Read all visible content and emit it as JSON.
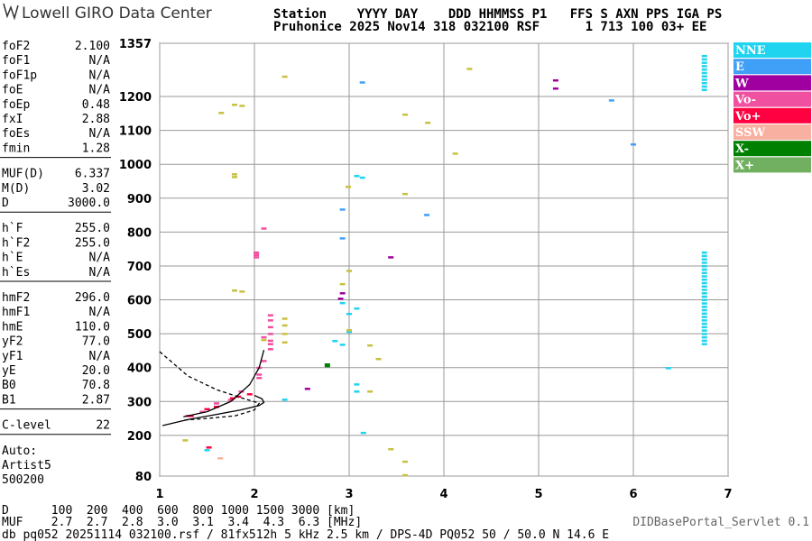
{
  "header": {
    "logo": "Lowell GIRO Data Center",
    "line1": "Station    YYYY DAY    DDD HHMMSS P1   FFS S AXN PPS IGA PS",
    "line2": "Pruhonice 2025 Nov14 318 032100 RSF      1 713 100 03+ EE"
  },
  "parameters": [
    [
      [
        "foF2",
        "2.100"
      ],
      [
        "foF1",
        "N/A"
      ],
      [
        "foF1p",
        "N/A"
      ],
      [
        "foE",
        "N/A"
      ],
      [
        "foEp",
        "0.48"
      ],
      [
        "fxI",
        "2.88"
      ],
      [
        "foEs",
        "N/A"
      ],
      [
        "fmin",
        "1.28"
      ]
    ],
    [
      [
        "MUF(D)",
        "6.337"
      ],
      [
        "M(D)",
        "3.02"
      ],
      [
        "D",
        "3000.0"
      ]
    ],
    [
      [
        "h`F",
        "255.0"
      ],
      [
        "h`F2",
        "255.0"
      ],
      [
        "h`E",
        "N/A"
      ],
      [
        "h`Es",
        "N/A"
      ]
    ],
    [
      [
        "hmF2",
        "296.0"
      ],
      [
        "hmF1",
        "N/A"
      ],
      [
        "hmE",
        "110.0"
      ],
      [
        "yF2",
        "77.0"
      ],
      [
        "yF1",
        "N/A"
      ],
      [
        "yE",
        "20.0"
      ],
      [
        "B0",
        "70.8"
      ],
      [
        "B1",
        "2.87"
      ]
    ],
    [
      [
        "C-level",
        "22"
      ]
    ]
  ],
  "autoscaling": [
    "Auto:",
    "Artist5",
    "500200"
  ],
  "footer": {
    "d_row": "D      100  200  400  600  800 1000 1500 3000 [km]",
    "muf_row": "MUF    2.7  2.7  2.8  3.0  3.1  3.4  4.3  6.3 [MHz]",
    "info": "db pq052 20251114 032100.rsf / 81fx512h 5 kHz 2.5 km / DPS-4D PQ052 50 / 50.0 N 14.6 E",
    "servlet": "DIDBasePortal_Servlet 0.1"
  },
  "chart_data": {
    "type": "scatter",
    "xlim": [
      1,
      7
    ],
    "xticks": [
      1,
      2,
      3,
      4,
      5,
      6,
      7
    ],
    "ylim": [
      80,
      1357
    ],
    "yticks": [
      80,
      200,
      300,
      400,
      500,
      600,
      700,
      800,
      900,
      1000,
      1100,
      1200,
      1357
    ],
    "grid": true,
    "series": [
      {
        "name": "NNE",
        "color": "#20d4f0",
        "x": [
          6.75,
          6.75,
          6.75,
          6.75,
          6.75,
          6.75,
          6.75,
          6.75,
          6.75,
          6.75,
          6.75,
          6.75,
          6.75,
          6.75,
          6.75,
          6.75,
          6.75,
          6.75,
          6.75,
          6.75,
          6.75,
          6.75,
          6.75,
          6.75,
          6.75,
          6.75,
          6.75,
          6.75,
          6.75,
          6.75,
          6.75,
          6.75,
          6.75,
          6.75,
          6.75,
          6.75,
          6.75,
          6.75,
          6.75,
          3.0,
          3.08,
          2.93,
          3.14,
          3.08,
          2.93,
          3.08,
          3.08,
          3.15,
          6.37,
          2.32,
          1.5,
          2.85,
          3.0
        ],
        "values": [
          470,
          480,
          490,
          500,
          510,
          520,
          530,
          540,
          550,
          560,
          570,
          580,
          590,
          600,
          610,
          620,
          630,
          640,
          650,
          660,
          670,
          680,
          690,
          700,
          710,
          720,
          730,
          740,
          1220,
          1230,
          1240,
          1250,
          1260,
          1270,
          1280,
          1290,
          1300,
          1310,
          1320,
          559,
          575,
          591,
          961,
          966,
          468,
          351,
          330,
          208,
          399,
          306,
          157,
          479,
          506
        ]
      },
      {
        "name": "E",
        "color": "#40a0f8",
        "x": [
          3.14,
          5.77,
          6.0,
          3.82,
          2.93,
          2.93
        ],
        "values": [
          1242,
          1189,
          1059,
          851,
          782,
          867
        ]
      },
      {
        "name": "W",
        "color": "#a000a0",
        "x": [
          5.18,
          5.18,
          3.44,
          2.91,
          2.93,
          2.56
        ],
        "values": [
          1248,
          1224,
          726,
          604,
          620,
          338
        ]
      },
      {
        "name": "Vo-",
        "color": "#f050a0",
        "x": [
          2.17,
          2.17,
          2.17,
          2.17,
          2.17,
          2.17,
          2.17,
          2.1,
          2.1,
          2.05,
          2.05,
          2.05,
          1.86,
          1.75,
          1.6,
          1.45,
          1.3,
          2.02,
          2.02,
          2.02,
          2.1
        ],
        "values": [
          555,
          540,
          520,
          500,
          480,
          470,
          455,
          490,
          420,
          400,
          380,
          370,
          330,
          305,
          295,
          270,
          258,
          740,
          733,
          726,
          811
        ]
      },
      {
        "name": "Vo+",
        "color": "#ff0040",
        "x": [
          1.6,
          1.5,
          1.33,
          1.77,
          1.95,
          1.83,
          1.52
        ],
        "values": [
          285,
          278,
          258,
          310,
          322,
          315,
          165
        ]
      },
      {
        "name": "SSW",
        "color": "#f8b0a0",
        "x": [
          1.64
        ],
        "values": [
          133
        ]
      },
      {
        "name": "X-",
        "color": "#008000",
        "x": [
          2.77,
          2.77
        ],
        "values": [
          405,
          410
        ]
      },
      {
        "name": "X+",
        "color": "#70b060",
        "x": [],
        "values": []
      },
      {
        "color": "#c8c040",
        "x": [
          2.32,
          4.27,
          1.65,
          1.79,
          1.87,
          3.59,
          3.83,
          4.12,
          1.79,
          1.79,
          2.99,
          3.59,
          1.79,
          1.87,
          2.93,
          3.0,
          3.0,
          3.22,
          3.31,
          3.22,
          2.1,
          2.32,
          2.32,
          2.32,
          2.32,
          1.27,
          3.44,
          3.59,
          3.59
        ],
        "values": [
          1259,
          1282,
          1152,
          1176,
          1173,
          1147,
          1123,
          1032,
          971,
          963,
          934,
          913,
          628,
          625,
          647,
          686,
          511,
          466,
          426,
          330,
          482,
          545,
          525,
          500,
          475,
          186,
          160,
          123,
          83
        ]
      },
      {
        "color": "#000000",
        "line": true,
        "dashed": false,
        "x": [
          1.03,
          1.3,
          1.6,
          1.85,
          2.05,
          2.1,
          2.08,
          2.0
        ],
        "values": [
          229,
          247,
          262,
          275,
          288,
          297,
          308,
          318
        ]
      },
      {
        "color": "#000000",
        "line": true,
        "dashed": false,
        "x": [
          1.25,
          1.5,
          1.75,
          1.95,
          2.05,
          2.1
        ],
        "values": [
          255,
          270,
          300,
          350,
          400,
          452
        ]
      },
      {
        "color": "#000000",
        "line": true,
        "dashed": true,
        "x": [
          1.0,
          1.3,
          1.6,
          1.85,
          2.05,
          2.0,
          1.8,
          1.5,
          1.25
        ],
        "values": [
          447,
          375,
          335,
          312,
          295,
          275,
          258,
          250,
          245
        ]
      }
    ]
  }
}
